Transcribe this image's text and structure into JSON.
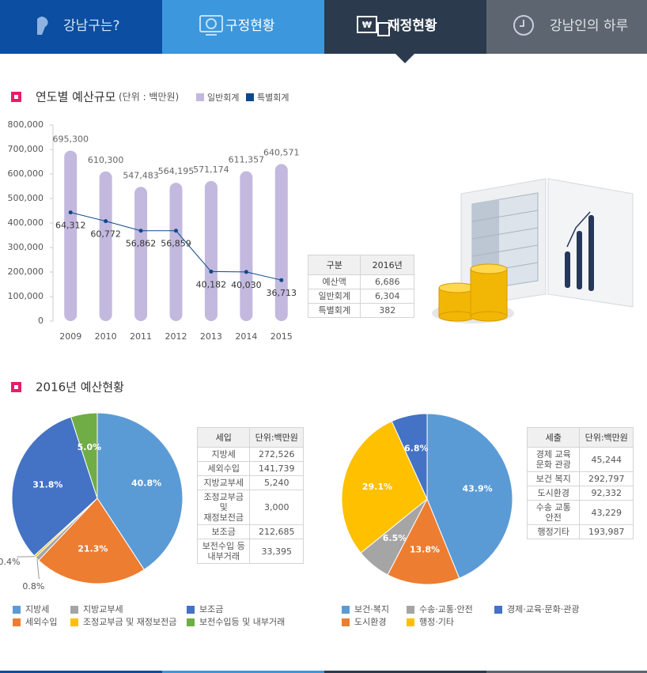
{
  "nav": {
    "tabs": [
      "강남구는?",
      "구정현황",
      "재정현황",
      "강남인의 하루"
    ],
    "active": 2
  },
  "chart_data": [
    {
      "type": "bar",
      "title": "연도별 예산규모",
      "subtitle": "(단위 : 백만원)",
      "categories": [
        "2009",
        "2010",
        "2011",
        "2012",
        "2013",
        "2014",
        "2015"
      ],
      "series": [
        {
          "name": "일반회계",
          "color": "#c3b8de",
          "values": [
            695300,
            610300,
            547483,
            564195,
            571174,
            611357,
            640571
          ],
          "value_labels": [
            "695,300",
            "610,300",
            "547,483",
            "564,195",
            "571,174",
            "611,357",
            "640,571"
          ]
        },
        {
          "name": "특별회계",
          "color": "#0b4a8a",
          "type": "line",
          "axis": "y2",
          "values": [
            64312,
            60772,
            56862,
            56859,
            40182,
            40030,
            36713
          ],
          "value_labels": [
            "64,312",
            "60,772",
            "56,862",
            "56,859",
            "40,182",
            "40,030",
            "36,713"
          ]
        }
      ],
      "ylim": [
        0,
        800000
      ],
      "yticks": [
        0,
        {
          "value": 100000,
          "label": "100,000"
        },
        {
          "value": 200000,
          "label": "200,000"
        },
        {
          "value": 300000,
          "label": "300,000"
        },
        {
          "value": 400000,
          "label": "400,000"
        },
        {
          "value": 500000,
          "label": "500,000"
        },
        {
          "value": 600000,
          "label": "600,000"
        },
        {
          "value": 700000,
          "label": "700,000"
        },
        {
          "value": 800000,
          "label": "800,000"
        }
      ],
      "y2lim": [
        20000,
        100000
      ]
    },
    {
      "type": "pie",
      "categories": [
        "지방세",
        "세외수입",
        "지방교부세",
        "조정교부금 및 재정보전금",
        "보조금",
        "보전수입등 및 내부거래"
      ],
      "values": [
        40.8,
        21.3,
        0.8,
        0.4,
        31.8,
        5.0
      ],
      "value_labels": [
        "40.8%",
        "21.3%",
        "0.8%",
        "0.4%",
        "31.8%",
        "5.0%"
      ],
      "colors": [
        "#5b9bd5",
        "#ed7d31",
        "#a5a5a5",
        "#ffc000",
        "#4472c4",
        "#70ad47"
      ]
    },
    {
      "type": "pie",
      "categories": [
        "보건·복지",
        "도시환경",
        "수송·교통·안전",
        "행정·기타",
        "경제·교육·문화·관광"
      ],
      "values": [
        43.9,
        13.8,
        6.5,
        29.1,
        6.8
      ],
      "value_labels": [
        "43.9%",
        "13.8%",
        "6.5%",
        "29.1%",
        "6.8%"
      ],
      "colors": [
        "#5b9bd5",
        "#ed7d31",
        "#a5a5a5",
        "#ffc000",
        "#4472c4"
      ]
    }
  ],
  "section2_title": "2016년 예산현황",
  "tables": [
    {
      "header": [
        "구분",
        "2016년"
      ],
      "rows": [
        [
          "예산액",
          "6,686"
        ],
        [
          "일반회계",
          "6,304"
        ],
        [
          "특별회계",
          "382"
        ]
      ]
    },
    {
      "header": [
        "세입",
        "단위:백만원"
      ],
      "rows": [
        [
          "지방세",
          "272,526"
        ],
        [
          "세외수입",
          "141,739"
        ],
        [
          "지방교부세",
          "5,240"
        ],
        [
          "조정교부금 및 재정보전금",
          "3,000"
        ],
        [
          "보조금",
          "212,685"
        ],
        [
          "보전수입 등 내부거래",
          "33,395"
        ]
      ]
    },
    {
      "header": [
        "세출",
        "단위:백만원"
      ],
      "rows": [
        [
          "경제 교육 문화 관광",
          "45,244"
        ],
        [
          "보건 복지",
          "292,797"
        ],
        [
          "도시환경",
          "92,332"
        ],
        [
          "수송 교통 안전",
          "43,229"
        ],
        [
          "행정기타",
          "193,987"
        ]
      ]
    }
  ]
}
